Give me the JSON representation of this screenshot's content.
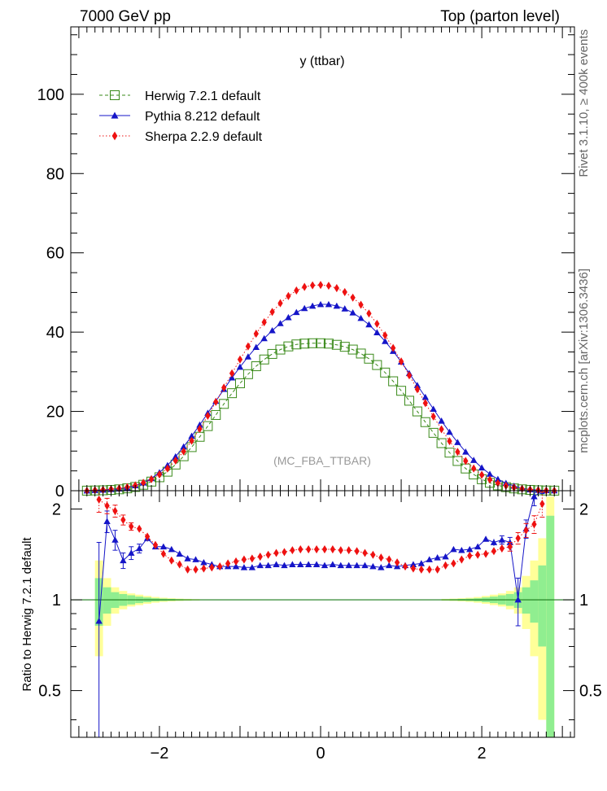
{
  "header": {
    "left": "7000 GeV pp",
    "right": "Top (parton level)"
  },
  "side_labels": {
    "rivet": "Rivet 3.1.10, ≥ 400k events",
    "mcplots": "mcplots.cern.ch [arXiv:1306.3436]"
  },
  "chart_data": [
    {
      "type": "line",
      "panel": "main",
      "title": "y (ttbar)",
      "watermark": "(MC_FBA_TTBAR)",
      "xlabel": "",
      "ylabel": "",
      "xlim": [
        -3.1,
        3.15
      ],
      "ylim": [
        0,
        117
      ],
      "yticks": [
        0,
        20,
        40,
        60,
        80,
        100
      ],
      "ytick_labels": [
        "0",
        "20",
        "40",
        "60",
        "80",
        "100"
      ],
      "legend": "top-left",
      "x": [
        -2.9,
        -2.8,
        -2.7,
        -2.6,
        -2.5,
        -2.4,
        -2.3,
        -2.2,
        -2.1,
        -2.0,
        -1.9,
        -1.8,
        -1.7,
        -1.6,
        -1.5,
        -1.4,
        -1.3,
        -1.2,
        -1.1,
        -1.0,
        -0.9,
        -0.8,
        -0.7,
        -0.6,
        -0.5,
        -0.4,
        -0.3,
        -0.2,
        -0.1,
        0.0,
        0.1,
        0.2,
        0.3,
        0.4,
        0.5,
        0.6,
        0.7,
        0.8,
        0.9,
        1.0,
        1.1,
        1.2,
        1.3,
        1.4,
        1.5,
        1.6,
        1.7,
        1.8,
        1.9,
        2.0,
        2.1,
        2.2,
        2.3,
        2.4,
        2.5,
        2.6,
        2.7,
        2.8,
        2.9
      ],
      "series": [
        {
          "name": "Herwig 7.2.1 default",
          "color": "#3a8a1a",
          "marker": "open-square",
          "line": "dashed",
          "values": [
            0.02,
            0.06,
            0.11,
            0.2,
            0.35,
            0.6,
            0.95,
            1.5,
            2.3,
            3.4,
            4.8,
            6.6,
            8.7,
            11.0,
            13.6,
            16.3,
            19.1,
            21.9,
            24.6,
            27.1,
            29.4,
            31.4,
            33.1,
            34.5,
            35.6,
            36.4,
            36.9,
            37.1,
            37.2,
            37.2,
            37.1,
            36.8,
            36.3,
            35.6,
            34.6,
            33.3,
            31.7,
            29.8,
            27.6,
            25.2,
            22.7,
            20.0,
            17.3,
            14.6,
            12.0,
            9.6,
            7.5,
            5.6,
            4.1,
            2.9,
            2.0,
            1.35,
            0.9,
            0.58,
            0.35,
            0.2,
            0.11,
            0.05,
            0.02
          ]
        },
        {
          "name": "Pythia 8.212 default",
          "color": "#1515c8",
          "marker": "filled-triangle",
          "line": "solid",
          "values": [
            0.0,
            0.1,
            0.2,
            0.35,
            0.5,
            0.8,
            1.3,
            2.0,
            3.1,
            4.6,
            6.4,
            8.6,
            11.1,
            13.8,
            16.6,
            19.6,
            22.6,
            25.6,
            28.5,
            31.2,
            33.8,
            36.2,
            38.4,
            40.4,
            42.2,
            43.7,
            45.0,
            46.0,
            46.6,
            47.0,
            47.0,
            46.6,
            45.9,
            44.9,
            43.5,
            41.9,
            39.9,
            37.7,
            35.2,
            32.5,
            29.6,
            26.6,
            23.6,
            20.6,
            17.6,
            14.8,
            12.2,
            9.8,
            7.7,
            5.8,
            4.2,
            2.9,
            1.9,
            1.2,
            0.6,
            0.3,
            0.15,
            0.07,
            0.02
          ]
        },
        {
          "name": "Sherpa 2.2.9 default",
          "color": "#ee1111",
          "marker": "filled-diamond",
          "line": "dotted",
          "values": [
            0.0,
            0.15,
            0.25,
            0.4,
            0.6,
            0.9,
            1.35,
            2.0,
            2.9,
            4.1,
            5.6,
            7.6,
            9.9,
            12.6,
            15.6,
            18.9,
            22.4,
            26.0,
            29.6,
            33.1,
            36.4,
            39.6,
            42.5,
            45.1,
            47.3,
            49.1,
            50.5,
            51.4,
            51.8,
            51.9,
            51.7,
            51.1,
            50.1,
            48.7,
            46.9,
            44.7,
            42.1,
            39.2,
            36.0,
            32.6,
            29.1,
            25.6,
            22.1,
            18.7,
            15.5,
            12.5,
            9.8,
            7.5,
            5.6,
            4.0,
            2.8,
            1.9,
            1.25,
            0.8,
            0.5,
            0.3,
            0.15,
            0.05,
            0.02
          ]
        }
      ]
    },
    {
      "type": "line",
      "panel": "ratio",
      "ylabel": "Ratio to Herwig 7.2.1 default",
      "xlabel": "",
      "xlim": [
        -3.1,
        3.15
      ],
      "ylim": [
        0.35,
        2.3
      ],
      "xticks": [
        -2,
        0,
        2
      ],
      "xtick_labels": [
        "−2",
        "0",
        "2"
      ],
      "yticks": [
        0.5,
        1,
        2
      ],
      "ytick_labels": [
        "0.5",
        "1",
        "2"
      ],
      "reference_value": 1.0,
      "band_x_edges": [
        -2.8,
        -2.7,
        -2.6,
        -2.5,
        -2.4,
        -2.3,
        -2.2,
        -2.1,
        -2.0,
        -1.9,
        -1.8,
        -1.7,
        -1.6,
        -1.5,
        1.5,
        1.6,
        1.7,
        1.8,
        1.9,
        2.0,
        2.1,
        2.2,
        2.3,
        2.4,
        2.5,
        2.6,
        2.7,
        2.8,
        2.9
      ],
      "band_stat_halfwidth": [
        0.18,
        0.1,
        0.06,
        0.045,
        0.035,
        0.025,
        0.018,
        0.012,
        0.009,
        0.007,
        0.005,
        0.004,
        0.003,
        0.003,
        0.004,
        0.005,
        0.007,
        0.009,
        0.012,
        0.018,
        0.025,
        0.035,
        0.045,
        0.06,
        0.1,
        0.16,
        0.3,
        0.9
      ],
      "band_total_halfwidth": [
        0.35,
        0.18,
        0.1,
        0.07,
        0.05,
        0.04,
        0.03,
        0.022,
        0.016,
        0.012,
        0.009,
        0.007,
        0.005,
        0.005,
        0.007,
        0.009,
        0.012,
        0.016,
        0.022,
        0.03,
        0.04,
        0.05,
        0.07,
        0.1,
        0.2,
        0.35,
        0.6,
        1.2
      ],
      "band_stat_color": "#90ee90",
      "band_total_color": "#ffff99",
      "x": [
        -2.75,
        -2.65,
        -2.55,
        -2.45,
        -2.35,
        -2.25,
        -2.15,
        -2.05,
        -1.95,
        -1.85,
        -1.75,
        -1.65,
        -1.55,
        -1.45,
        -1.35,
        -1.25,
        -1.15,
        -1.05,
        -0.95,
        -0.85,
        -0.75,
        -0.65,
        -0.55,
        -0.45,
        -0.35,
        -0.25,
        -0.15,
        -0.05,
        0.05,
        0.15,
        0.25,
        0.35,
        0.45,
        0.55,
        0.65,
        0.75,
        0.85,
        0.95,
        1.05,
        1.15,
        1.25,
        1.35,
        1.45,
        1.55,
        1.65,
        1.75,
        1.85,
        1.95,
        2.05,
        2.15,
        2.25,
        2.35,
        2.45,
        2.55,
        2.65,
        2.75
      ],
      "series": [
        {
          "name": "Pythia 8.212 default",
          "color": "#1515c8",
          "marker": "filled-triangle",
          "values": [
            0.85,
            1.82,
            1.58,
            1.35,
            1.43,
            1.48,
            1.6,
            1.5,
            1.5,
            1.47,
            1.42,
            1.37,
            1.36,
            1.33,
            1.31,
            1.29,
            1.29,
            1.29,
            1.28,
            1.28,
            1.3,
            1.3,
            1.31,
            1.3,
            1.31,
            1.31,
            1.31,
            1.31,
            1.3,
            1.31,
            1.3,
            1.3,
            1.3,
            1.3,
            1.29,
            1.28,
            1.3,
            1.29,
            1.3,
            1.31,
            1.32,
            1.36,
            1.38,
            1.39,
            1.47,
            1.46,
            1.47,
            1.5,
            1.59,
            1.55,
            1.58,
            1.55,
            1.0,
            1.72,
            2.2,
            2.55
          ],
          "errors": [
            0.7,
            0.15,
            0.12,
            0.08,
            0.07,
            0.05,
            0.04,
            0.03,
            0.02,
            0.02,
            0.02,
            0.01,
            0.01,
            0.01,
            0.01,
            0.01,
            0.01,
            0.01,
            0.01,
            0.01,
            0.01,
            0.01,
            0.01,
            0.01,
            0.01,
            0.01,
            0.01,
            0.01,
            0.01,
            0.01,
            0.01,
            0.01,
            0.01,
            0.01,
            0.01,
            0.01,
            0.01,
            0.01,
            0.01,
            0.01,
            0.01,
            0.01,
            0.01,
            0.02,
            0.02,
            0.02,
            0.02,
            0.02,
            0.03,
            0.04,
            0.05,
            0.06,
            0.18,
            0.12,
            0.15,
            0.3
          ]
        },
        {
          "name": "Sherpa 2.2.9 default",
          "color": "#ee1111",
          "marker": "filled-diamond",
          "values": [
            2.15,
            2.05,
            1.97,
            1.84,
            1.75,
            1.72,
            1.62,
            1.52,
            1.42,
            1.35,
            1.31,
            1.26,
            1.26,
            1.27,
            1.28,
            1.29,
            1.32,
            1.34,
            1.36,
            1.37,
            1.39,
            1.41,
            1.43,
            1.44,
            1.46,
            1.47,
            1.47,
            1.47,
            1.47,
            1.47,
            1.46,
            1.46,
            1.45,
            1.43,
            1.41,
            1.38,
            1.36,
            1.33,
            1.29,
            1.27,
            1.26,
            1.26,
            1.26,
            1.3,
            1.32,
            1.36,
            1.4,
            1.41,
            1.42,
            1.45,
            1.48,
            1.5,
            1.6,
            1.7,
            1.78,
            2.08
          ],
          "errors": [
            0.2,
            0.12,
            0.09,
            0.07,
            0.05,
            0.04,
            0.03,
            0.02,
            0.02,
            0.01,
            0.01,
            0.01,
            0.01,
            0.01,
            0.01,
            0.01,
            0.01,
            0.01,
            0.01,
            0.01,
            0.01,
            0.01,
            0.01,
            0.01,
            0.01,
            0.01,
            0.01,
            0.01,
            0.01,
            0.01,
            0.01,
            0.01,
            0.01,
            0.01,
            0.01,
            0.01,
            0.01,
            0.01,
            0.01,
            0.01,
            0.01,
            0.01,
            0.01,
            0.01,
            0.01,
            0.01,
            0.02,
            0.02,
            0.02,
            0.03,
            0.04,
            0.05,
            0.07,
            0.09,
            0.12,
            0.2
          ]
        }
      ]
    }
  ]
}
